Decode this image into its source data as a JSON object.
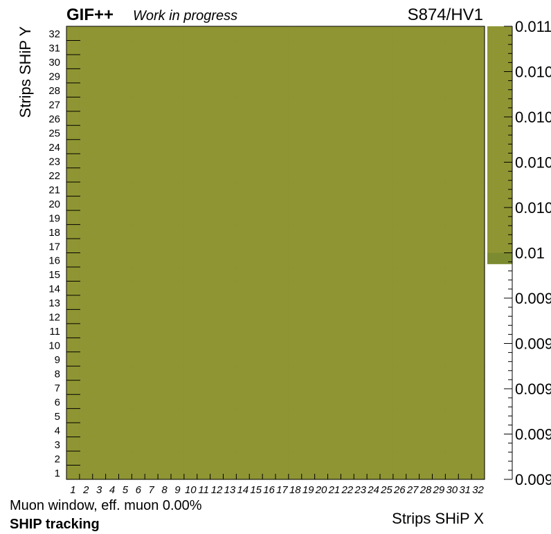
{
  "header": {
    "experiment": "GIF++",
    "status": "Work in progress",
    "run_label": "S874/HV1"
  },
  "footer": {
    "window_info": "Muon window, eff. muon 0.00%",
    "tracking_label": "SHIP tracking"
  },
  "chart_data": {
    "type": "heatmap",
    "xlabel": "Strips SHiP X",
    "ylabel": "Strips SHiP Y",
    "x_categories": [
      1,
      2,
      3,
      4,
      5,
      6,
      7,
      8,
      9,
      10,
      11,
      12,
      13,
      14,
      15,
      16,
      17,
      18,
      19,
      20,
      21,
      22,
      23,
      24,
      25,
      26,
      27,
      28,
      29,
      30,
      31,
      32
    ],
    "y_categories": [
      1,
      2,
      3,
      4,
      5,
      6,
      7,
      8,
      9,
      10,
      11,
      12,
      13,
      14,
      15,
      16,
      17,
      18,
      19,
      20,
      21,
      22,
      23,
      24,
      25,
      26,
      27,
      28,
      29,
      30,
      31,
      32
    ],
    "uniform_value": 0.01,
    "cell_color": "#8f9533",
    "colorbar": {
      "range": [
        0.009,
        0.011
      ],
      "tick_labels": [
        "0.009",
        "0.009",
        "0.009",
        "0.009",
        "0.009",
        "0.01",
        "0.010",
        "0.010",
        "0.010",
        "0.010",
        "0.011"
      ],
      "fill_color": "#8f9533",
      "band_color": "#7d8b30",
      "band_range": [
        0.00995,
        0.01
      ]
    }
  }
}
